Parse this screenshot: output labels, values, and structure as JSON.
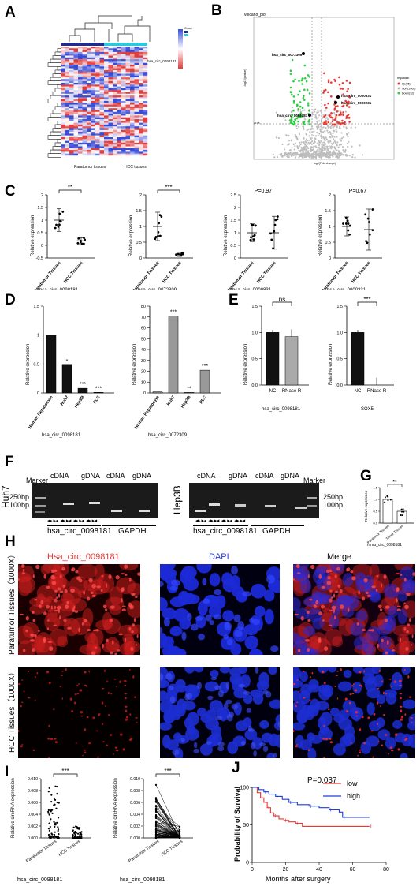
{
  "panels": {
    "A": "A",
    "B": "B",
    "C": "C",
    "D": "D",
    "E": "E",
    "F": "F",
    "G": "G",
    "H": "H",
    "I": "I",
    "J": "J"
  },
  "A": {
    "legend_title": "Group",
    "row_label": "hsa_circ_0098181",
    "group_labels": [
      "Paratumor tissues",
      "HCC tissues"
    ],
    "colors": {
      "high": "#e03c3c",
      "low": "#3a4fd6",
      "group_a": "#1f2d8a",
      "group_b": "#30c8d8"
    }
  },
  "B": {
    "title": "volcano_plot",
    "xlabel": "log2(Fold change)",
    "ylabel": "-log10(pvalue)",
    "threshold_label": "p0.05",
    "legend_title": "regulation",
    "legend": [
      "Up(95)",
      "Nor(11608)",
      "Down(72)"
    ],
    "points": [
      "hsa_circ_0072309",
      "hsa_circ_0000831",
      "hsa_circ_0000231",
      "hsa_circ_0098181"
    ],
    "colors": {
      "up": "#e53935",
      "nor": "#bdbdbd",
      "down": "#2ecc40"
    }
  },
  "C": {
    "ylabel": "Relative expression",
    "groups": [
      "Paratumor Tissues",
      "HCC Tissues"
    ],
    "plots": [
      {
        "name": "hsa_circ_0098181",
        "sig": "**",
        "pval": ""
      },
      {
        "name": "hsa_circ_0072309",
        "sig": "***",
        "pval": ""
      },
      {
        "name": "hsa_circ_0000831",
        "sig": "",
        "pval": "P=0.97"
      },
      {
        "name": "hsa_circ_0000231",
        "sig": "",
        "pval": "P=0.67"
      }
    ]
  },
  "D": {
    "ylabel": "Relative expression",
    "categories": [
      "Human Hepatocyte",
      "Huh7",
      "Hep3B",
      "PLC"
    ],
    "plots": [
      {
        "name": "hsa_circ_0098181",
        "sigs": [
          "",
          "*",
          "***",
          "***"
        ]
      },
      {
        "name": "hsa_circ_0072309",
        "sigs": [
          "",
          "***",
          "**",
          "***"
        ]
      }
    ]
  },
  "E": {
    "ylabel": "Relative expression",
    "categories": [
      "NC",
      "RNase R"
    ],
    "plots": [
      {
        "name": "hsa_circ_0098181",
        "sig": "ns"
      },
      {
        "name": "SOX5",
        "sig": "***"
      }
    ]
  },
  "F": {
    "left_cell": "Huh7",
    "right_cell": "Hep3B",
    "marker": "Marker",
    "lanes": [
      "cDNA",
      "gDNA",
      "cDNA",
      "gDNA"
    ],
    "sizes": [
      "250bp",
      "100bp"
    ],
    "genes": [
      "hsa_circ_0098181",
      "GAPDH"
    ],
    "primers": "◂▸  ▸◂"
  },
  "G": {
    "ylabel": "Relative expression",
    "groups": [
      "Paratumor Tissues",
      "Tumor Tissues"
    ],
    "sig": "**",
    "name": "mmu_circ_0098181"
  },
  "H": {
    "columns": [
      "Hsa_circ_0098181",
      "DAPI",
      "Merge"
    ],
    "rows": [
      "Paratumor Tissues（1000X）",
      "HCC Tissues（1000X）"
    ],
    "column_colors": [
      "#e53935",
      "#2338d8",
      "#000000"
    ]
  },
  "I": {
    "ylabel": "Relative circRNA expression",
    "groups": [
      "Paratumor Tissues",
      "HCC Tissues"
    ],
    "sig": "***",
    "name": "hsa_circ_0098181"
  },
  "J": {
    "pval": "P=0.037",
    "xlabel": "Months after surgery",
    "ylabel": "Probability of Survival",
    "legend": [
      "low",
      "high"
    ],
    "colors": {
      "low": "#e53935",
      "high": "#1f3fd6"
    }
  },
  "chart_data": [
    {
      "type": "scatter",
      "panel": "C",
      "name": "hsa_circ_0098181",
      "title": "",
      "xlabel": "",
      "ylabel": "Relative expression",
      "categories": [
        "Paratumor Tissues",
        "HCC Tissues"
      ],
      "means": [
        1.0,
        0.18
      ],
      "sd": [
        0.45,
        0.12
      ],
      "ylim": [
        -0.5,
        2.0
      ],
      "yticks": [
        -0.5,
        0,
        0.5,
        1,
        1.5,
        2
      ]
    },
    {
      "type": "scatter",
      "panel": "C",
      "name": "hsa_circ_0072309",
      "title": "",
      "xlabel": "",
      "ylabel": "Relative expression",
      "categories": [
        "Paratumor Tissues",
        "HCC Tissues"
      ],
      "means": [
        1.0,
        0.1
      ],
      "sd": [
        0.45,
        0.05
      ],
      "ylim": [
        0,
        2.0
      ],
      "yticks": [
        0,
        0.5,
        1,
        1.5,
        2
      ]
    },
    {
      "type": "scatter",
      "panel": "C",
      "name": "hsa_circ_0000831",
      "title": "",
      "xlabel": "",
      "ylabel": "Relative expression",
      "categories": [
        "Paratumor Tissues",
        "HCC Tissues"
      ],
      "means": [
        1.0,
        1.0
      ],
      "sd": [
        0.35,
        0.65
      ],
      "ylim": [
        0,
        2.5
      ],
      "yticks": [
        0,
        0.5,
        1,
        1.5,
        2,
        2.5
      ]
    },
    {
      "type": "scatter",
      "panel": "C",
      "name": "hsa_circ_0000231",
      "title": "",
      "xlabel": "",
      "ylabel": "Relative expression",
      "categories": [
        "Paratumor Tissues",
        "HCC Tissues"
      ],
      "means": [
        1.0,
        0.9
      ],
      "sd": [
        0.3,
        0.65
      ],
      "ylim": [
        0,
        2.0
      ],
      "yticks": [
        0,
        0.5,
        1,
        1.5,
        2
      ]
    },
    {
      "type": "bar",
      "panel": "D",
      "name": "hsa_circ_0098181",
      "title": "",
      "xlabel": "",
      "ylabel": "Relative expression",
      "categories": [
        "Human Hepatocyte",
        "Huh7",
        "Hep3B",
        "PLC"
      ],
      "values": [
        1.0,
        0.48,
        0.08,
        0.01
      ],
      "ylim": [
        0,
        1.5
      ],
      "yticks": [
        0,
        0.5,
        1.0,
        1.5
      ]
    },
    {
      "type": "bar",
      "panel": "D",
      "name": "hsa_circ_0072309",
      "title": "",
      "xlabel": "",
      "ylabel": "Relative expression",
      "categories": [
        "Human Hepatocyte",
        "Huh7",
        "Hep3B",
        "PLC"
      ],
      "values": [
        1,
        71,
        0.5,
        21
      ],
      "ylim": [
        0,
        80
      ],
      "yticks": [
        0,
        10,
        20,
        30,
        40,
        50,
        60,
        70,
        80
      ]
    },
    {
      "type": "bar",
      "panel": "E",
      "name": "hsa_circ_0098181",
      "title": "",
      "xlabel": "",
      "ylabel": "Relative expression",
      "categories": [
        "NC",
        "RNase R"
      ],
      "values": [
        1.0,
        0.92
      ],
      "ylim": [
        0,
        1.5
      ],
      "yticks": [
        0,
        0.5,
        1.0,
        1.5
      ]
    },
    {
      "type": "bar",
      "panel": "E",
      "name": "SOX5",
      "title": "",
      "xlabel": "",
      "ylabel": "Relative expression",
      "categories": [
        "NC",
        "RNase R"
      ],
      "values": [
        1.0,
        0.0
      ],
      "ylim": [
        0,
        1.5
      ],
      "yticks": [
        0,
        0.5,
        1.0,
        1.5
      ]
    },
    {
      "type": "bar",
      "panel": "G",
      "name": "mmu_circ_0098181",
      "title": "",
      "xlabel": "",
      "ylabel": "Relative expression",
      "categories": [
        "Paratumor Tissues",
        "Tumor Tissues"
      ],
      "values": [
        1.0,
        0.5
      ],
      "ylim": [
        0,
        1.5
      ],
      "yticks": [
        0,
        0.5,
        1.0,
        1.5
      ]
    },
    {
      "type": "scatter",
      "panel": "I",
      "name": "hsa_circ_0098181",
      "title": "",
      "xlabel": "",
      "ylabel": "Relative circRNA expression",
      "categories": [
        "Paratumor Tissues",
        "HCC Tissues"
      ],
      "ylim": [
        0,
        0.01
      ],
      "yticks": [
        0,
        0.002,
        0.004,
        0.006,
        0.008,
        0.01
      ]
    },
    {
      "type": "line",
      "panel": "I",
      "name": "hsa_circ_0098181",
      "title": "",
      "xlabel": "",
      "ylabel": "Relative circRNA expression",
      "categories": [
        "Paratumor Tissues",
        "HCC Tissues"
      ],
      "ylim": [
        0,
        0.01
      ],
      "yticks": [
        0,
        0.002,
        0.004,
        0.006,
        0.008,
        0.01
      ]
    },
    {
      "type": "line",
      "panel": "J",
      "title": "",
      "xlabel": "Months after surgery",
      "ylabel": "Probability of Survival",
      "xlim": [
        0,
        80
      ],
      "ylim": [
        0,
        100
      ],
      "xticks": [
        0,
        20,
        40,
        60,
        80
      ],
      "yticks": [
        0,
        50,
        100
      ],
      "series": [
        {
          "name": "low",
          "x": [
            0,
            3,
            5,
            7,
            9,
            11,
            13,
            16,
            19,
            22,
            26,
            30,
            70
          ],
          "y": [
            100,
            93,
            86,
            80,
            73,
            66,
            62,
            58,
            56,
            54,
            52,
            48,
            48
          ]
        },
        {
          "name": "high",
          "x": [
            0,
            4,
            7,
            10,
            14,
            18,
            22,
            27,
            34,
            40,
            46,
            52,
            54,
            70
          ],
          "y": [
            100,
            97,
            94,
            91,
            88,
            84,
            80,
            77,
            75,
            73,
            70,
            67,
            60,
            60
          ]
        }
      ]
    }
  ]
}
